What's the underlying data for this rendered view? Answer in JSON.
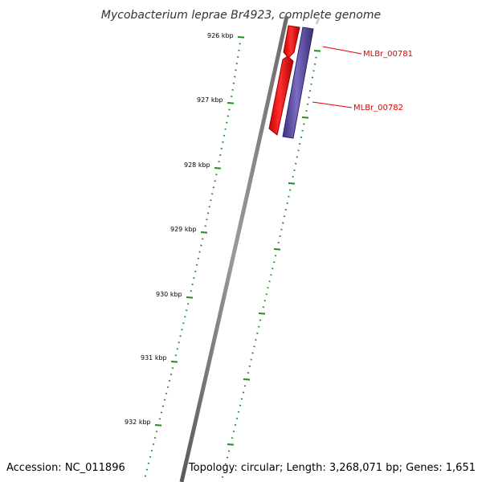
{
  "title": "Mycobacterium leprae Br4923, complete genome",
  "footer": {
    "accession": "Accession: NC_011896",
    "summary": "Topology: circular; Length: 3,268,071 bp; Genes: 1,651"
  },
  "ticks": [
    {
      "label": "926 kbp"
    },
    {
      "label": "927 kbp"
    },
    {
      "label": "928 kbp"
    },
    {
      "label": "929 kbp"
    },
    {
      "label": "930 kbp"
    },
    {
      "label": "931 kbp"
    },
    {
      "label": "932 kbp"
    }
  ],
  "genes": [
    {
      "name": "MLBr_00781",
      "strand": "reverse"
    },
    {
      "name": "MLBr_00782",
      "strand": "forward"
    }
  ],
  "colors": {
    "backbone": "#808080",
    "tick": "#228b22",
    "gene_reverse": "#ff0000",
    "gene_forward": "#5a4a9c",
    "label_line": "#e00000"
  }
}
